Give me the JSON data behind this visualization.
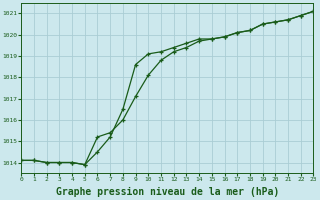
{
  "background_color": "#cce8ed",
  "grid_color": "#aacdd4",
  "line_color": "#1a5c1a",
  "xlabel": "Graphe pression niveau de la mer (hPa)",
  "xlabel_fontsize": 7,
  "xmin": 0,
  "xmax": 23,
  "ymin": 1013.5,
  "ymax": 1021.5,
  "yticks": [
    1014,
    1015,
    1016,
    1017,
    1018,
    1019,
    1020,
    1021
  ],
  "xticks": [
    0,
    1,
    2,
    3,
    4,
    5,
    6,
    7,
    8,
    9,
    10,
    11,
    12,
    13,
    14,
    15,
    16,
    17,
    18,
    19,
    20,
    21,
    22,
    23
  ],
  "line1_x": [
    0,
    1,
    2,
    3,
    4,
    5,
    6,
    7,
    8,
    9,
    10,
    11,
    12,
    13,
    14,
    15,
    16,
    17,
    18,
    19,
    20,
    21,
    22,
    23
  ],
  "line1_y": [
    1014.1,
    1014.1,
    1014.0,
    1014.0,
    1014.0,
    1013.9,
    1015.2,
    1015.4,
    1016.0,
    1017.1,
    1018.1,
    1018.8,
    1019.2,
    1019.4,
    1019.7,
    1019.8,
    1019.9,
    1020.1,
    1020.2,
    1020.5,
    1020.6,
    1020.7,
    1020.9,
    1021.1
  ],
  "line2_x": [
    0,
    1,
    2,
    3,
    4,
    5,
    6,
    7,
    8,
    9,
    10,
    11,
    12,
    13,
    14,
    15,
    16,
    17,
    18,
    19,
    20,
    21,
    22,
    23
  ],
  "line2_y": [
    1014.1,
    1014.1,
    1014.0,
    1014.0,
    1014.0,
    1013.9,
    1014.5,
    1015.2,
    1016.5,
    1018.6,
    1019.1,
    1019.2,
    1019.4,
    1019.6,
    1019.8,
    1019.8,
    1019.9,
    1020.1,
    1020.2,
    1020.5,
    1020.6,
    1020.7,
    1020.9,
    1021.1
  ]
}
